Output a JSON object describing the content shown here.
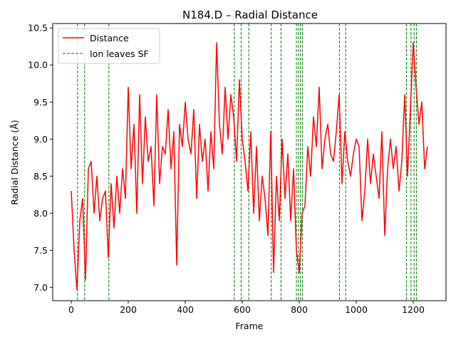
{
  "chart_data": {
    "type": "line",
    "title": "N184.D – Radial Distance",
    "xlabel": "Frame",
    "ylabel": "Radial Distance (Å)",
    "xlim": [
      -65,
      1315
    ],
    "ylim": [
      6.82,
      10.56
    ],
    "x_ticks": [
      0,
      200,
      400,
      600,
      800,
      1000,
      1200
    ],
    "y_ticks": [
      7.0,
      7.5,
      8.0,
      8.5,
      9.0,
      9.5,
      10.0,
      10.5
    ],
    "grid": false,
    "legend_position": "upper-left",
    "series": [
      {
        "name": "Distance",
        "color": "#ff0000",
        "style": "solid",
        "x": [
          0,
          10,
          20,
          30,
          40,
          50,
          60,
          70,
          80,
          90,
          100,
          110,
          120,
          130,
          140,
          150,
          160,
          170,
          180,
          190,
          200,
          210,
          220,
          230,
          240,
          250,
          260,
          270,
          280,
          290,
          300,
          310,
          320,
          330,
          340,
          350,
          360,
          370,
          380,
          390,
          400,
          410,
          420,
          430,
          440,
          450,
          460,
          470,
          480,
          490,
          500,
          510,
          520,
          530,
          540,
          550,
          560,
          570,
          580,
          590,
          600,
          610,
          620,
          630,
          640,
          650,
          660,
          670,
          680,
          690,
          700,
          710,
          720,
          730,
          740,
          750,
          760,
          770,
          780,
          790,
          800,
          810,
          820,
          830,
          840,
          850,
          860,
          870,
          880,
          890,
          900,
          910,
          920,
          930,
          940,
          950,
          960,
          970,
          980,
          990,
          1000,
          1010,
          1020,
          1030,
          1040,
          1050,
          1060,
          1070,
          1080,
          1090,
          1100,
          1110,
          1120,
          1130,
          1140,
          1150,
          1160,
          1170,
          1180,
          1190,
          1200,
          1210,
          1220,
          1230,
          1240,
          1250
        ],
        "y": [
          8.3,
          7.5,
          6.97,
          7.9,
          8.2,
          7.1,
          8.6,
          8.7,
          8.0,
          8.5,
          7.9,
          8.2,
          8.3,
          7.4,
          8.4,
          7.8,
          8.5,
          8.0,
          8.6,
          8.2,
          9.7,
          8.6,
          9.2,
          8.0,
          9.6,
          8.4,
          9.3,
          8.7,
          8.9,
          8.1,
          9.6,
          8.4,
          8.9,
          8.8,
          9.4,
          8.6,
          9.1,
          7.3,
          9.2,
          8.9,
          9.5,
          9.0,
          8.8,
          9.4,
          8.2,
          9.2,
          8.7,
          9.0,
          8.3,
          9.1,
          8.6,
          10.3,
          9.2,
          8.8,
          9.7,
          9.0,
          9.6,
          9.3,
          8.7,
          9.8,
          9.0,
          8.7,
          8.3,
          9.1,
          8.0,
          8.9,
          7.9,
          8.5,
          8.2,
          7.7,
          9.1,
          7.2,
          8.5,
          7.9,
          9.0,
          8.2,
          8.8,
          7.9,
          8.6,
          7.5,
          7.2,
          8.0,
          8.1,
          8.9,
          8.5,
          9.3,
          8.9,
          9.7,
          8.6,
          9.0,
          9.2,
          8.8,
          8.7,
          9.1,
          9.6,
          8.4,
          9.1,
          8.7,
          8.5,
          8.8,
          9.0,
          8.9,
          7.9,
          8.3,
          9.0,
          8.4,
          8.8,
          8.5,
          8.2,
          9.1,
          7.7,
          8.6,
          9.0,
          8.6,
          8.9,
          8.3,
          8.7,
          9.6,
          8.5,
          9.4,
          10.3,
          9.7,
          9.2,
          9.5,
          8.6,
          8.9
        ]
      },
      {
        "name": "Ion leaves SF",
        "color": "#008000",
        "style": "dashed",
        "vlines": [
          22,
          47,
          132,
          572,
          596,
          623,
          702,
          736,
          790,
          797,
          804,
          811,
          941,
          963,
          1176,
          1192,
          1203,
          1211
        ]
      }
    ]
  }
}
